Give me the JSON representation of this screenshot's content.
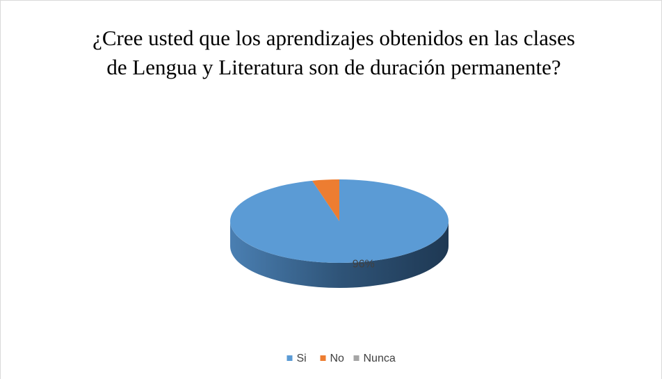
{
  "chart_data": {
    "type": "pie3d",
    "title": "¿Cree usted que los aprendizajes obtenidos en las clases de Lengua y Literatura son de duración permanente?",
    "categories": [
      "Si",
      "No",
      "Nunca"
    ],
    "values": [
      96,
      4,
      0
    ],
    "value_labels": [
      "96%",
      null,
      null
    ],
    "colors": [
      "#5b9bd5",
      "#ed7d31",
      "#a5a5a5"
    ],
    "legend": "bottom"
  }
}
